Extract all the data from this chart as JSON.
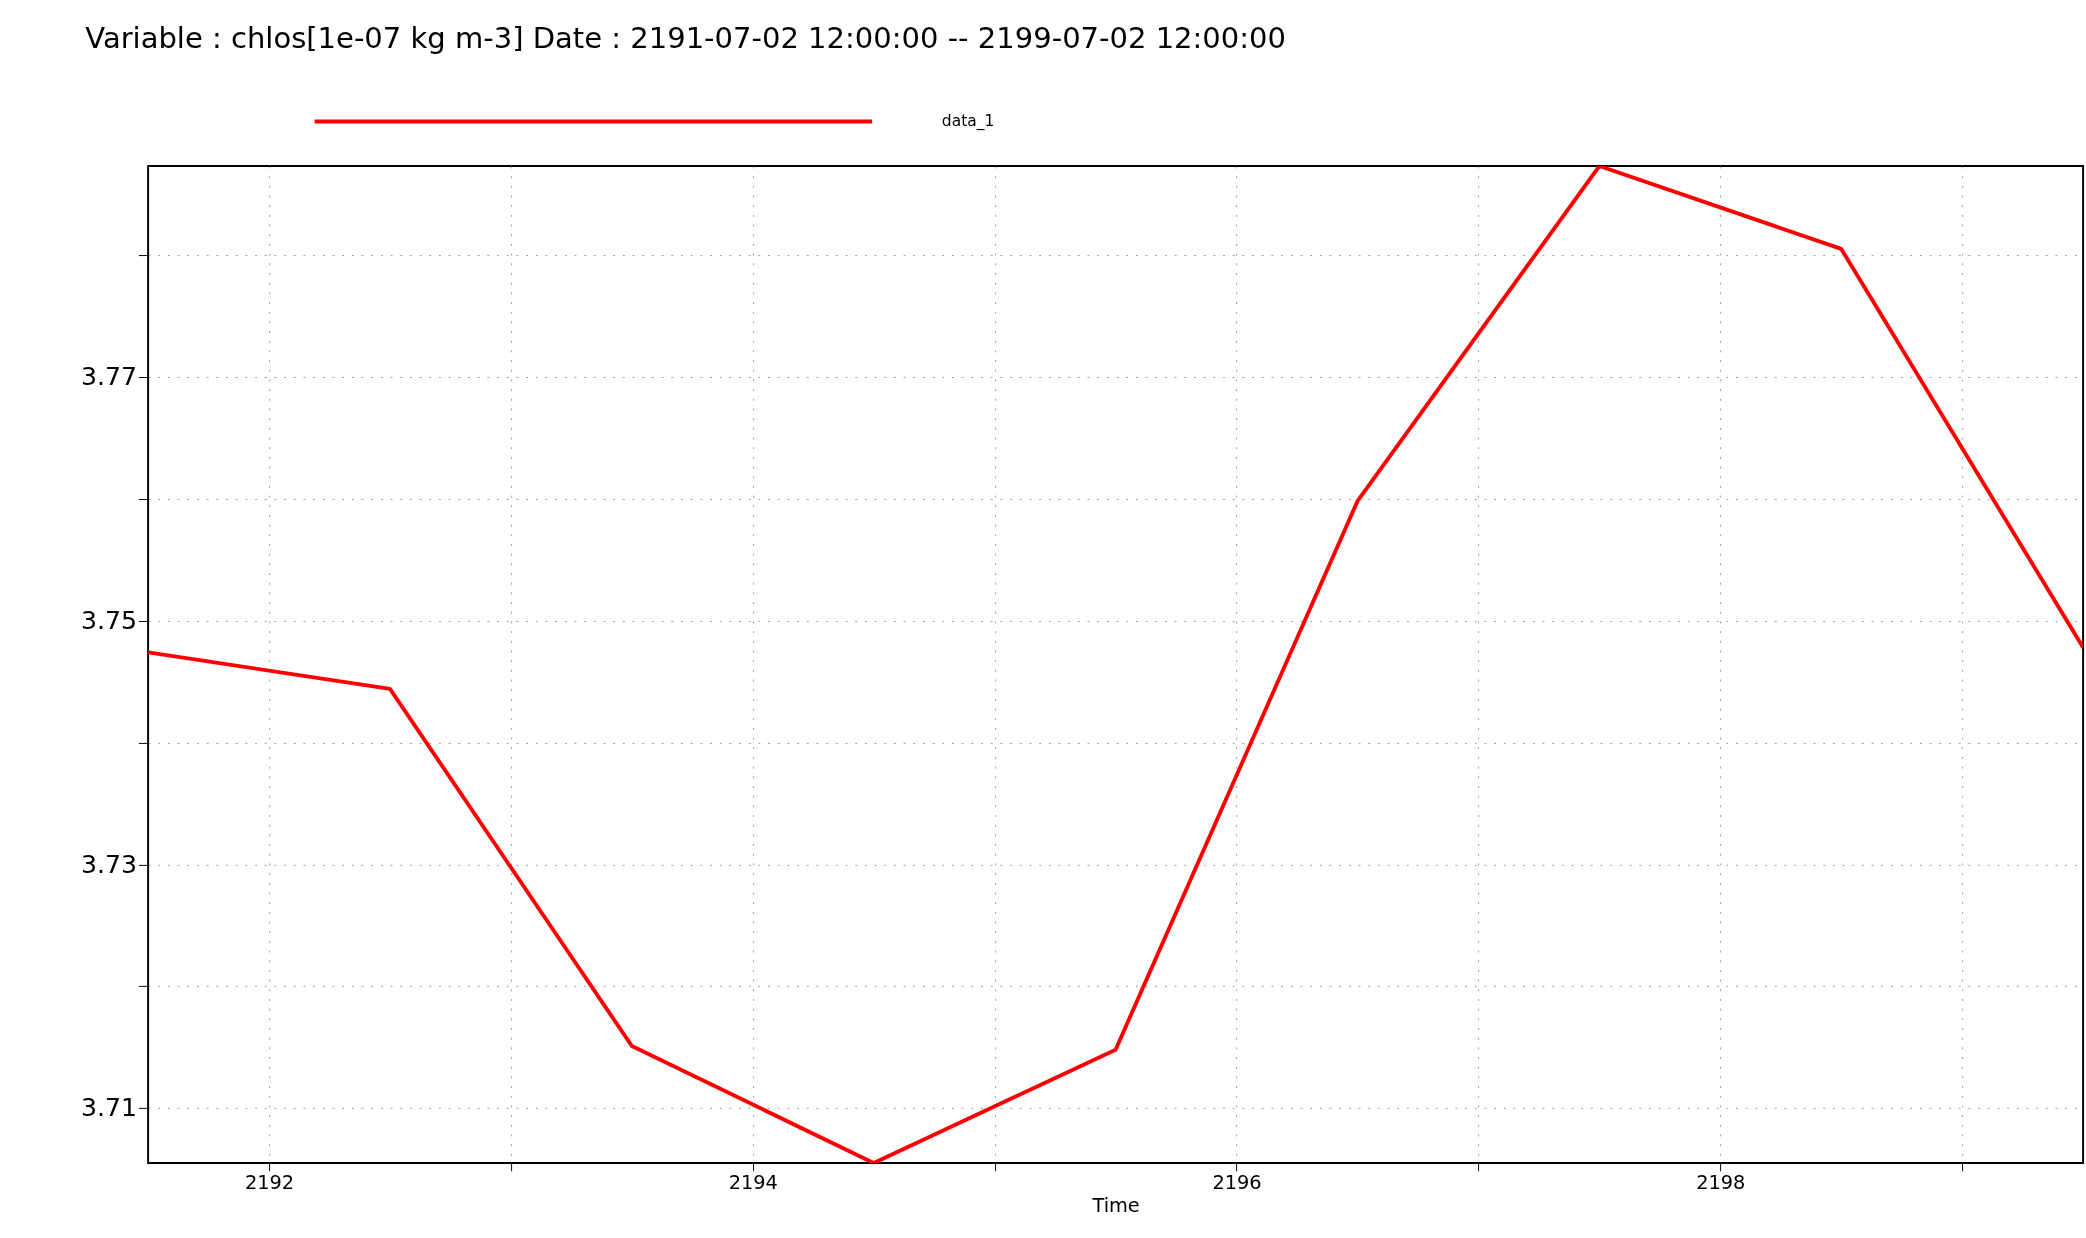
{
  "chart_data": {
    "type": "line",
    "title": "Variable : chlos[1e-07 kg m-3]  Date :  2191-07-02 12:00:00 -- 2199-07-02 12:00:00",
    "xlabel": "Time",
    "x": [
      2191.5,
      2192.5,
      2193.5,
      2194.5,
      2195.5,
      2196.5,
      2197.5,
      2198.5,
      2199.5
    ],
    "series": [
      {
        "name": "data_1",
        "color": "#ff0000",
        "values": [
          3.7474,
          3.7444,
          3.7151,
          3.7055,
          3.7148,
          3.7598,
          3.7873,
          3.7805,
          3.7478
        ]
      }
    ],
    "xlim": [
      2191.5,
      2199.5
    ],
    "xticks": [
      2192,
      {
        "value": 2193,
        "label": null
      },
      2194,
      {
        "value": 2195,
        "label": null
      },
      2196,
      {
        "value": 2197,
        "label": null
      },
      2198,
      {
        "value": 2199,
        "label": null
      }
    ],
    "ylim": [
      3.7055,
      3.7873
    ],
    "yticks": [
      3.71,
      {
        "value": 3.72,
        "label": null
      },
      3.73,
      {
        "value": 3.74,
        "label": null
      },
      3.75,
      {
        "value": 3.76,
        "label": null
      },
      3.77,
      {
        "value": 3.78,
        "label": null
      }
    ],
    "grid": true,
    "legend": "top",
    "marker": "none",
    "line_style": "solid"
  }
}
